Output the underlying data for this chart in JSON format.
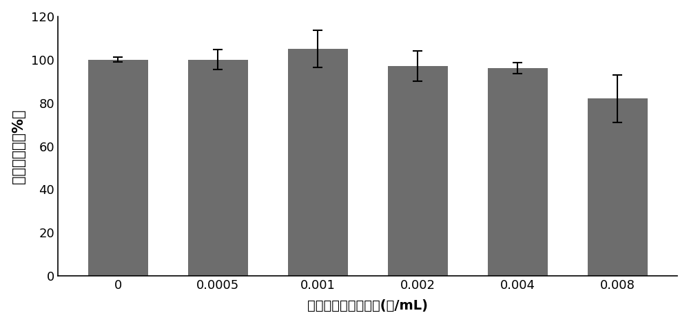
{
  "categories": [
    "0",
    "0.0005",
    "0.001",
    "0.002",
    "0.004",
    "0.008"
  ],
  "values": [
    100,
    100,
    105,
    97,
    96,
    82
  ],
  "errors_upper": [
    1.0,
    4.5,
    8.5,
    7.0,
    2.5,
    11.0
  ],
  "errors_lower": [
    1.0,
    4.5,
    8.5,
    7.0,
    2.5,
    11.0
  ],
  "bar_color": "#6d6d6d",
  "bar_width": 0.6,
  "ylim": [
    0,
    120
  ],
  "yticks": [
    0,
    20,
    40,
    60,
    80,
    100,
    120
  ],
  "ylabel": "细胞存活率（%）",
  "xlabel": "烟气浸提物染毒浓度(支/mL)",
  "background_color": "#ffffff",
  "ylabel_fontsize": 15,
  "xlabel_fontsize": 14,
  "tick_fontsize": 13
}
